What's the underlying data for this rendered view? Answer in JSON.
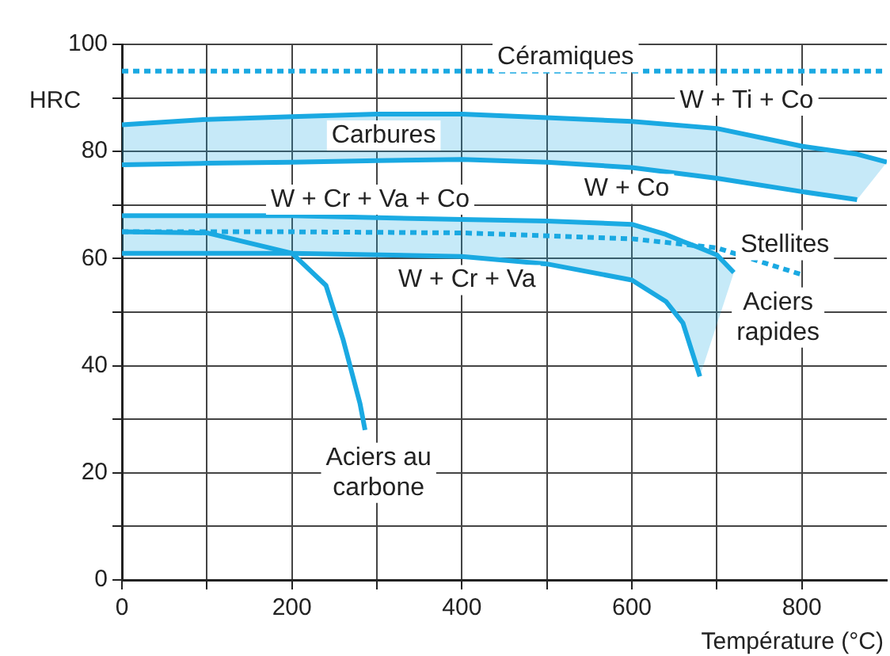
{
  "chart_data": {
    "type": "line",
    "xlabel": "Température (°C)",
    "ylabel": "HRC",
    "xlim": [
      0,
      900
    ],
    "ylim": [
      0,
      100
    ],
    "xticks": [
      0,
      {
        "value": 100,
        "label": null
      },
      200,
      {
        "value": 300,
        "label": null
      },
      400,
      {
        "value": 500,
        "label": null
      },
      600,
      {
        "value": 700,
        "label": null
      },
      800
    ],
    "yticks": [
      0,
      {
        "value": 10,
        "label": null
      },
      20,
      {
        "value": 30,
        "label": null
      },
      40,
      {
        "value": 50,
        "label": null
      },
      60,
      {
        "value": 70,
        "label": null
      },
      80,
      {
        "value": 90,
        "label": null
      },
      100
    ],
    "grid": true,
    "legend": false,
    "marker": "none",
    "series": [
      {
        "name": "Céramiques",
        "color": "#1aa9e2",
        "line_style": "dotted",
        "x": [
          0,
          900
        ],
        "values": [
          95,
          95
        ]
      },
      {
        "name": "W + Ti + Co",
        "color": "#1aa9e2",
        "line_style": "solid",
        "x": [
          0,
          100,
          200,
          300,
          400,
          500,
          600,
          700,
          800,
          865,
          900
        ],
        "values": [
          85,
          86,
          86.5,
          87,
          87,
          86.3,
          85.6,
          84.3,
          81,
          79.5,
          78
        ],
        "lower": [
          77.5,
          77.8,
          78,
          78.3,
          78.5,
          78,
          77,
          75,
          72.5,
          71,
          78
        ],
        "upper": [
          85,
          86,
          86.5,
          87,
          87,
          86.3,
          85.6,
          84.3,
          81,
          79.5,
          78
        ]
      },
      {
        "name": "W + Co",
        "color": "#1aa9e2",
        "line_style": "solid",
        "x": [
          0,
          100,
          200,
          300,
          400,
          500,
          600,
          700,
          800,
          865
        ],
        "values": [
          77.5,
          77.8,
          78,
          78.3,
          78.5,
          78,
          77,
          75,
          72.5,
          71
        ]
      },
      {
        "name": "W + Cr + Va + Co",
        "color": "#1babe3",
        "line_style": "solid",
        "x": [
          0,
          200,
          400,
          500,
          600,
          640,
          660,
          680,
          700,
          720
        ],
        "values": [
          68,
          68,
          67.3,
          67,
          66.4,
          64.5,
          63.2,
          62,
          60.7,
          57.4
        ],
        "lower": [
          61,
          61,
          60.4,
          59,
          56,
          52,
          48,
          38,
          47.7,
          57.4
        ],
        "upper": [
          68,
          68,
          67.3,
          67,
          66.4,
          64.5,
          63.2,
          62,
          60.7,
          57.4
        ]
      },
      {
        "name": "W + Cr + Va",
        "color": "#1aa9e2",
        "line_style": "solid",
        "x": [
          0,
          200,
          400,
          500,
          600,
          640,
          660,
          680
        ],
        "values": [
          61,
          61,
          60.4,
          59,
          56,
          52,
          48,
          38
        ]
      },
      {
        "name": "Stellites",
        "color": "#1aa9e2",
        "line_style": "dotted",
        "x": [
          0,
          200,
          400,
          600,
          700,
          800
        ],
        "values": [
          65,
          65,
          64.8,
          63.7,
          62,
          57
        ]
      },
      {
        "name": "Aciers au carbone",
        "color": "#1aa9e2",
        "line_style": "solid",
        "x": [
          0,
          100,
          200,
          240,
          260,
          280,
          286
        ],
        "values": [
          65,
          64.8,
          61,
          55,
          45,
          33,
          28
        ]
      }
    ],
    "annotations": [
      "Carbures",
      "Aciers rapides"
    ]
  }
}
